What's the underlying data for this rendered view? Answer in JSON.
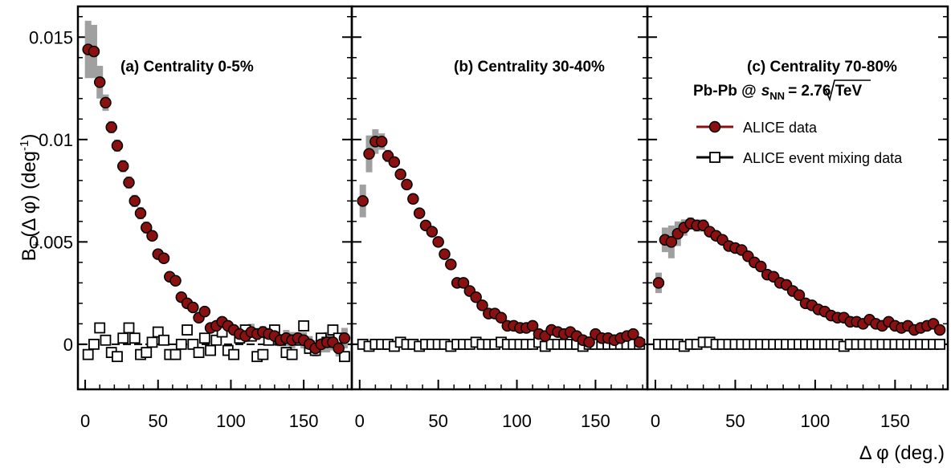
{
  "chart_data": {
    "type": "scatter",
    "ylabel_parts": {
      "base": "B",
      "sub": "+-",
      "rest": "(Δ φ) (deg",
      "sup": "-1",
      "close": ")"
    },
    "xlabel": "Δ φ (deg.)",
    "ylim": [
      -0.0022,
      0.0165
    ],
    "xlim": [
      -5,
      183
    ],
    "yticks": [
      0,
      0.005,
      0.01,
      0.015
    ],
    "ytick_labels": [
      "0",
      "0.005",
      "0.01",
      "0.015"
    ],
    "xticks": [
      0,
      50,
      100,
      150
    ],
    "xtick_labels": [
      "0",
      "50",
      "100",
      "150"
    ],
    "legend": {
      "system": "Pb-Pb @",
      "sqrt_s": "s",
      "sqrt_sub": "NN",
      "energy": "= 2.76 TeV",
      "entries": [
        "ALICE data",
        "ALICE event mixing data"
      ]
    },
    "colors": {
      "data_fill": "#8b1010",
      "data_stroke": "#000000",
      "syst": "#a0a0a0",
      "zero_line": "#000000"
    },
    "panels": [
      {
        "label": "(a)  Centrality 0-5%",
        "series": [
          {
            "name": "ALICE data",
            "x": [
              2,
              6,
              10,
              14,
              18,
              22,
              26,
              30,
              34,
              38,
              42,
              46,
              50,
              54,
              58,
              62,
              66,
              70,
              74,
              78,
              82,
              86,
              90,
              94,
              98,
              102,
              106,
              110,
              114,
              118,
              122,
              126,
              130,
              134,
              138,
              142,
              146,
              150,
              154,
              158,
              162,
              166,
              170,
              174,
              178
            ],
            "y": [
              0.0144,
              0.0143,
              0.0128,
              0.0118,
              0.0106,
              0.0097,
              0.0087,
              0.0079,
              0.007,
              0.0064,
              0.0057,
              0.0053,
              0.0044,
              0.0042,
              0.0033,
              0.0031,
              0.0023,
              0.002,
              0.0018,
              0.0013,
              0.0016,
              0.0008,
              0.0009,
              0.0011,
              0.0009,
              0.0007,
              0.0005,
              0.0004,
              0.0006,
              0.0005,
              0.0006,
              0.0005,
              0.0004,
              0.0002,
              0.0003,
              0.0002,
              0.0003,
              0.0002,
              0.0,
              -0.0002,
              0.0,
              0.0001,
              0.0001,
              -0.0002,
              0.0003
            ],
            "syst": [
              0.0014,
              0.0013,
              0.0008,
              0.0004,
              0.0003,
              0.0003,
              0.0003,
              0.0003,
              0.0003,
              0.0003,
              0.0003,
              0.0002,
              0.0002,
              0.0002,
              0.0002,
              0.0002,
              0.0002,
              0.0002,
              0.0002,
              0.0002,
              0.0002,
              0.0002,
              0.0002,
              0.0002,
              0.0002,
              0.0002,
              0.0002,
              0.0003,
              0.0004,
              0.0003,
              0.0003,
              0.0003,
              0.0004,
              0.0003,
              0.0004,
              0.0004,
              0.0003,
              0.0004,
              0.0004,
              0.0004,
              0.0004,
              0.0005,
              0.0004,
              0.0004,
              0.0005
            ]
          },
          {
            "name": "ALICE event mixing data",
            "x": [
              2,
              6,
              10,
              14,
              18,
              22,
              26,
              30,
              34,
              38,
              42,
              46,
              50,
              54,
              58,
              62,
              66,
              70,
              74,
              78,
              82,
              86,
              90,
              94,
              98,
              102,
              106,
              110,
              114,
              118,
              122,
              126,
              130,
              134,
              138,
              142,
              146,
              150,
              154,
              158,
              162,
              166,
              170,
              174,
              178
            ],
            "y": [
              -0.0005,
              0.0,
              0.0008,
              0.0002,
              -0.0004,
              -0.0006,
              0.0003,
              0.0008,
              0.0003,
              -0.0005,
              -0.0004,
              0.0001,
              0.0006,
              0.0002,
              -0.0005,
              -0.0005,
              0.0,
              0.0007,
              0.0,
              -0.0004,
              0.0003,
              -0.0003,
              0.0002,
              0.0006,
              -0.0003,
              -0.0005,
              0.0003,
              0.0007,
              0.0004,
              -0.0006,
              -0.0005,
              0.0002,
              0.0007,
              0.0002,
              -0.0004,
              -0.0005,
              0.0002,
              0.0009,
              -0.0002,
              -0.0003,
              0.0003,
              0.0001,
              0.0007,
              0.0003,
              -0.0006
            ]
          }
        ]
      },
      {
        "label": "(b)  Centrality 30-40%",
        "series": [
          {
            "name": "ALICE data",
            "x": [
              2,
              6,
              10,
              14,
              18,
              22,
              26,
              30,
              34,
              38,
              42,
              46,
              50,
              54,
              58,
              62,
              66,
              70,
              74,
              78,
              82,
              86,
              90,
              94,
              98,
              102,
              106,
              110,
              114,
              118,
              122,
              126,
              130,
              134,
              138,
              142,
              146,
              150,
              154,
              158,
              162,
              166,
              170,
              174,
              178
            ],
            "y": [
              0.007,
              0.0093,
              0.0099,
              0.0099,
              0.0092,
              0.0089,
              0.0083,
              0.0078,
              0.0071,
              0.0064,
              0.0058,
              0.0055,
              0.005,
              0.0044,
              0.0039,
              0.003,
              0.003,
              0.0026,
              0.0023,
              0.0019,
              0.0015,
              0.0015,
              0.0013,
              0.0009,
              0.0009,
              0.0008,
              0.0008,
              0.0009,
              0.0005,
              0.0004,
              0.0007,
              0.0006,
              0.0005,
              0.0006,
              0.0004,
              0.0002,
              0.0001,
              0.0005,
              0.0003,
              0.0003,
              0.0002,
              0.0003,
              0.0004,
              0.0005,
              0.0001
            ],
            "syst": [
              0.0008,
              0.0009,
              0.0006,
              0.0004,
              0.0003,
              0.0002,
              0.0002,
              0.0002,
              0.0002,
              0.0002,
              0.0002,
              0.0002,
              0.0002,
              0.0002,
              0.0002,
              0.0002,
              0.0002,
              0.0002,
              0.0002,
              0.0002,
              0.0002,
              0.0002,
              0.0002,
              0.0002,
              0.0002,
              0.0002,
              0.0002,
              0.0002,
              0.0002,
              0.0002,
              0.0002,
              0.0002,
              0.0002,
              0.0002,
              0.0002,
              0.0002,
              0.0002,
              0.0002,
              0.0002,
              0.0002,
              0.0002,
              0.0002,
              0.0002,
              0.0002,
              0.0002
            ]
          },
          {
            "name": "ALICE event mixing data",
            "x": [
              2,
              6,
              10,
              14,
              18,
              22,
              26,
              30,
              34,
              38,
              42,
              46,
              50,
              54,
              58,
              62,
              66,
              70,
              74,
              78,
              82,
              86,
              90,
              94,
              98,
              102,
              106,
              110,
              114,
              118,
              122,
              126,
              130,
              134,
              138,
              142,
              146,
              150,
              154,
              158,
              162,
              166,
              170,
              174,
              178
            ],
            "y": [
              0.0,
              -0.0001,
              0.0,
              0.0,
              0.0,
              -0.0001,
              0.0001,
              0.0,
              0.0,
              -0.0001,
              0.0,
              0.0,
              0.0,
              0.0,
              -0.0001,
              0.0,
              0.0,
              0.0,
              0.0001,
              0.0,
              0.0,
              0.0,
              0.0001,
              0.0,
              0.0,
              0.0,
              0.0,
              0.0,
              0.0001,
              -0.0001,
              0.0,
              0.0,
              0.0,
              0.0,
              0.0,
              -0.0001,
              0.0,
              0.0,
              0.0,
              0.0,
              0.0,
              0.0,
              0.0,
              0.0,
              0.0
            ]
          }
        ]
      },
      {
        "label": "(c)  Centrality 70-80%",
        "series": [
          {
            "name": "ALICE data",
            "x": [
              2,
              6,
              10,
              14,
              18,
              22,
              26,
              30,
              34,
              38,
              42,
              46,
              50,
              54,
              58,
              62,
              66,
              70,
              74,
              78,
              82,
              86,
              90,
              94,
              98,
              102,
              106,
              110,
              114,
              118,
              122,
              126,
              130,
              134,
              138,
              142,
              146,
              150,
              154,
              158,
              162,
              166,
              170,
              174,
              178
            ],
            "y": [
              0.003,
              0.0051,
              0.005,
              0.0054,
              0.0057,
              0.0059,
              0.0058,
              0.0058,
              0.0055,
              0.0053,
              0.0051,
              0.0048,
              0.0047,
              0.0046,
              0.0043,
              0.004,
              0.0038,
              0.0034,
              0.0033,
              0.003,
              0.0029,
              0.0026,
              0.0024,
              0.002,
              0.0019,
              0.0017,
              0.0016,
              0.0014,
              0.0013,
              0.0013,
              0.0011,
              0.0011,
              0.001,
              0.0012,
              0.001,
              0.0009,
              0.0011,
              0.0009,
              0.0008,
              0.0009,
              0.0007,
              0.0008,
              0.0009,
              0.001,
              0.0007
            ],
            "syst": [
              0.0005,
              0.0006,
              0.0008,
              0.0006,
              0.0004,
              0.0003,
              0.0003,
              0.0003,
              0.0002,
              0.0002,
              0.0002,
              0.0002,
              0.0002,
              0.0002,
              0.0002,
              0.0002,
              0.0002,
              0.0002,
              0.0002,
              0.0002,
              0.0002,
              0.0002,
              0.0002,
              0.0002,
              0.0002,
              0.0002,
              0.0002,
              0.0002,
              0.0002,
              0.0002,
              0.0002,
              0.0002,
              0.0002,
              0.0002,
              0.0002,
              0.0002,
              0.0002,
              0.0002,
              0.0002,
              0.0002,
              0.0002,
              0.0002,
              0.0002,
              0.0002,
              0.0002
            ]
          },
          {
            "name": "ALICE event mixing data",
            "x": [
              2,
              6,
              10,
              14,
              18,
              22,
              26,
              30,
              34,
              38,
              42,
              46,
              50,
              54,
              58,
              62,
              66,
              70,
              74,
              78,
              82,
              86,
              90,
              94,
              98,
              102,
              106,
              110,
              114,
              118,
              122,
              126,
              130,
              134,
              138,
              142,
              146,
              150,
              154,
              158,
              162,
              166,
              170,
              174,
              178
            ],
            "y": [
              0.0,
              0.0,
              0.0,
              0.0,
              -0.0001,
              0.0,
              0.0,
              0.0001,
              0.0001,
              0.0,
              0.0,
              0.0,
              0.0,
              0.0,
              0.0,
              0.0,
              0.0,
              0.0,
              0.0,
              0.0,
              0.0,
              0.0,
              0.0,
              0.0,
              0.0,
              0.0,
              0.0,
              0.0,
              0.0,
              -0.0001,
              0.0,
              0.0,
              0.0,
              0.0,
              0.0,
              0.0,
              0.0,
              0.0,
              0.0,
              0.0,
              0.0,
              0.0,
              0.0,
              0.0,
              0.0
            ]
          }
        ]
      }
    ]
  }
}
